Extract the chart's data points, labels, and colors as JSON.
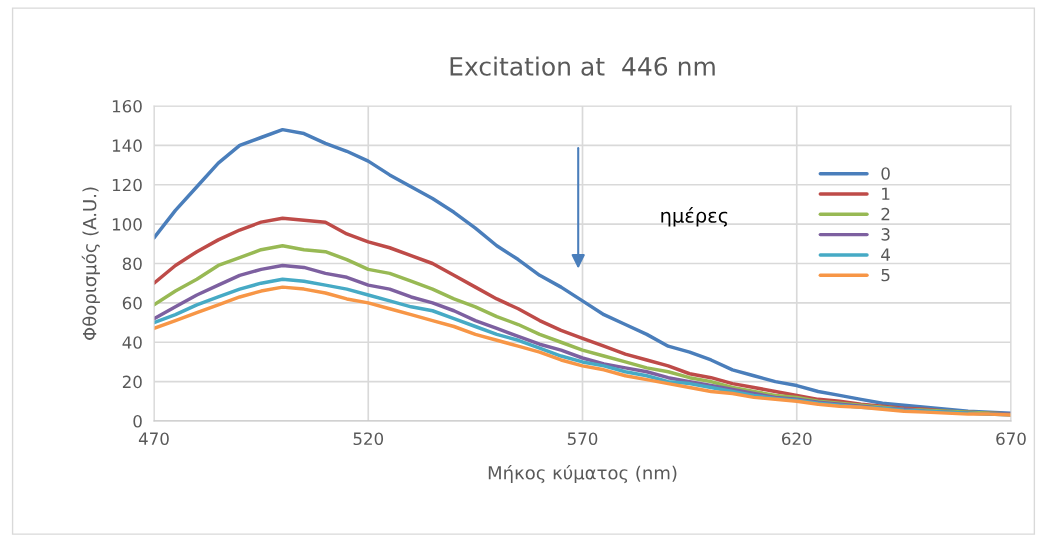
{
  "chart_data": {
    "type": "line",
    "title": "Excitation at  446 nm",
    "xlabel": "Μήκος κύματος (nm)",
    "ylabel": "Φθορισμός (A.U.)",
    "x": [
      470,
      475,
      480,
      485,
      490,
      495,
      500,
      505,
      510,
      515,
      520,
      525,
      530,
      535,
      540,
      545,
      550,
      555,
      560,
      565,
      570,
      575,
      580,
      585,
      590,
      595,
      600,
      605,
      610,
      615,
      620,
      625,
      630,
      635,
      640,
      645,
      650,
      655,
      660,
      665,
      670
    ],
    "series": [
      {
        "name": "0",
        "color": "#4a7ebb",
        "values": [
          93,
          107,
          119,
          131,
          140,
          144,
          148,
          146,
          141,
          137,
          132,
          125,
          119,
          113,
          106,
          98,
          89,
          82,
          74,
          68,
          61,
          54,
          49,
          44,
          38,
          35,
          31,
          26,
          23,
          20,
          18,
          15,
          13,
          11,
          9,
          8,
          7,
          6,
          5,
          4.5,
          4
        ]
      },
      {
        "name": "1",
        "color": "#be4b48",
        "values": [
          70,
          79,
          86,
          92,
          97,
          101,
          103,
          102,
          101,
          95,
          91,
          88,
          84,
          80,
          74,
          68,
          62,
          57,
          51,
          46,
          42,
          38,
          34,
          31,
          28,
          24,
          22,
          19,
          17,
          15,
          13,
          11,
          10,
          8.5,
          7.5,
          6.5,
          6,
          5,
          4.5,
          4,
          3.5
        ]
      },
      {
        "name": "2",
        "color": "#98b954",
        "values": [
          59,
          66,
          72,
          79,
          83,
          87,
          89,
          87,
          86,
          82,
          77,
          75,
          71,
          67,
          62,
          58,
          53,
          49,
          44,
          40,
          36,
          33,
          30,
          27,
          25,
          22,
          20,
          17,
          15,
          13,
          12,
          10,
          9,
          8,
          7,
          6,
          5.5,
          5,
          4.5,
          4,
          3.5
        ]
      },
      {
        "name": "3",
        "color": "#7d60a0",
        "values": [
          52,
          58,
          64,
          69,
          74,
          77,
          79,
          78,
          75,
          73,
          69,
          67,
          63,
          60,
          56,
          51,
          47,
          43,
          39,
          36,
          32,
          29,
          27,
          25,
          22,
          20,
          18,
          16,
          14,
          12,
          11,
          9.5,
          8.5,
          7.5,
          6.5,
          6,
          5,
          4.5,
          4,
          3.5,
          3.5
        ]
      },
      {
        "name": "4",
        "color": "#46aac5",
        "values": [
          50,
          54,
          59,
          63,
          67,
          70,
          72,
          71,
          69,
          67,
          64,
          61,
          58,
          56,
          52,
          48,
          44,
          41,
          37,
          33,
          30,
          28,
          25,
          23,
          20,
          19,
          17,
          15,
          13,
          11.5,
          10.5,
          9,
          8,
          7,
          6.5,
          5.5,
          5,
          4.5,
          4,
          3.5,
          3
        ]
      },
      {
        "name": "5",
        "color": "#f79646",
        "values": [
          47,
          51,
          55,
          59,
          63,
          66,
          68,
          67,
          65,
          62,
          60,
          57,
          54,
          51,
          48,
          44,
          41,
          38,
          35,
          31,
          28,
          26,
          23,
          21,
          19,
          17,
          15,
          14,
          12,
          11,
          10,
          8.5,
          7.5,
          7,
          6,
          5,
          4.5,
          4,
          3.5,
          3.5,
          3
        ]
      }
    ],
    "xlim": [
      470,
      670
    ],
    "xticks": [
      470,
      520,
      570,
      620,
      670
    ],
    "ylim": [
      0,
      160
    ],
    "yticks": [
      0,
      20,
      40,
      60,
      80,
      100,
      120,
      140,
      160
    ],
    "grid": true,
    "legend": "right",
    "marker": "none",
    "line_style": "solid",
    "annotations": [
      "ημέρες"
    ]
  }
}
